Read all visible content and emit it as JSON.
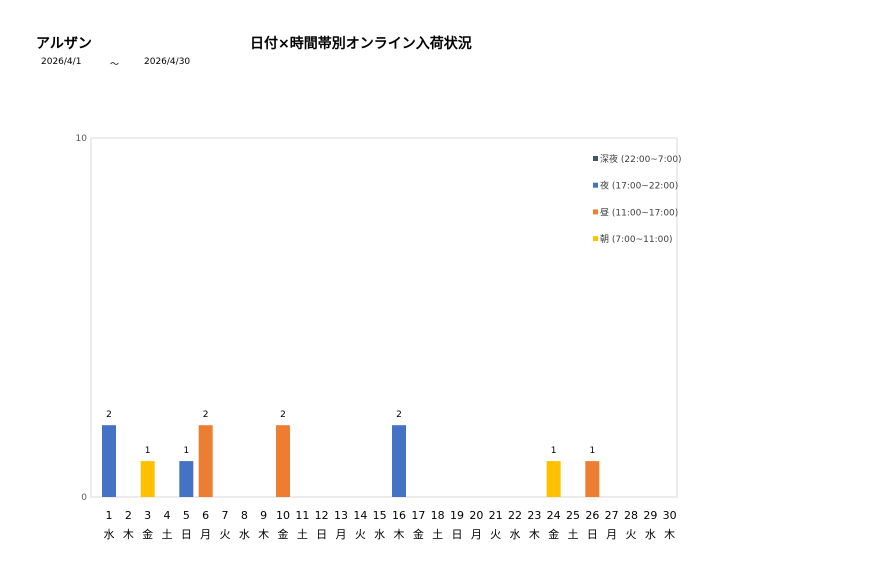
{
  "header": {
    "store_name": "アルザン",
    "title": "日付×時間帯別オンライン入荷状況",
    "date_start": "2026/4/1",
    "date_separator": "～",
    "date_end": "2026/4/30"
  },
  "chart_data": {
    "type": "bar",
    "stacked": true,
    "ylim": [
      0,
      10
    ],
    "y_ticks": [
      "0",
      "10"
    ],
    "categories": [
      "1",
      "2",
      "3",
      "4",
      "5",
      "6",
      "7",
      "8",
      "9",
      "10",
      "11",
      "12",
      "13",
      "14",
      "15",
      "16",
      "17",
      "18",
      "19",
      "20",
      "21",
      "22",
      "23",
      "24",
      "25",
      "26",
      "27",
      "28",
      "29",
      "30"
    ],
    "weekdays": [
      "水",
      "木",
      "金",
      "土",
      "日",
      "月",
      "火",
      "水",
      "木",
      "金",
      "土",
      "日",
      "月",
      "火",
      "水",
      "木",
      "金",
      "土",
      "日",
      "月",
      "火",
      "水",
      "木",
      "金",
      "土",
      "日",
      "月",
      "火",
      "水",
      "木"
    ],
    "legend_position": "top-right",
    "series": [
      {
        "name": "深夜 (22:00~7:00)",
        "color": "#44546A",
        "values": [
          0,
          0,
          0,
          0,
          0,
          0,
          0,
          0,
          0,
          0,
          0,
          0,
          0,
          0,
          0,
          0,
          0,
          0,
          0,
          0,
          0,
          0,
          0,
          0,
          0,
          0,
          0,
          0,
          0,
          0
        ]
      },
      {
        "name": "夜 (17:00~22:00)",
        "color": "#4472C4",
        "values": [
          2,
          0,
          0,
          0,
          1,
          0,
          0,
          0,
          0,
          0,
          0,
          0,
          0,
          0,
          0,
          2,
          0,
          0,
          0,
          0,
          0,
          0,
          0,
          0,
          0,
          0,
          0,
          0,
          0,
          0
        ]
      },
      {
        "name": "昼 (11:00~17:00)",
        "color": "#ED7D31",
        "values": [
          0,
          0,
          0,
          0,
          0,
          2,
          0,
          0,
          0,
          2,
          0,
          0,
          0,
          0,
          0,
          0,
          0,
          0,
          0,
          0,
          0,
          0,
          0,
          0,
          0,
          1,
          0,
          0,
          0,
          0
        ]
      },
      {
        "name": "朝 (7:00~11:00)",
        "color": "#FFC000",
        "values": [
          0,
          0,
          1,
          0,
          0,
          0,
          0,
          0,
          0,
          0,
          0,
          0,
          0,
          0,
          0,
          0,
          0,
          0,
          0,
          0,
          0,
          0,
          0,
          1,
          0,
          0,
          0,
          0,
          0,
          0
        ]
      }
    ]
  }
}
